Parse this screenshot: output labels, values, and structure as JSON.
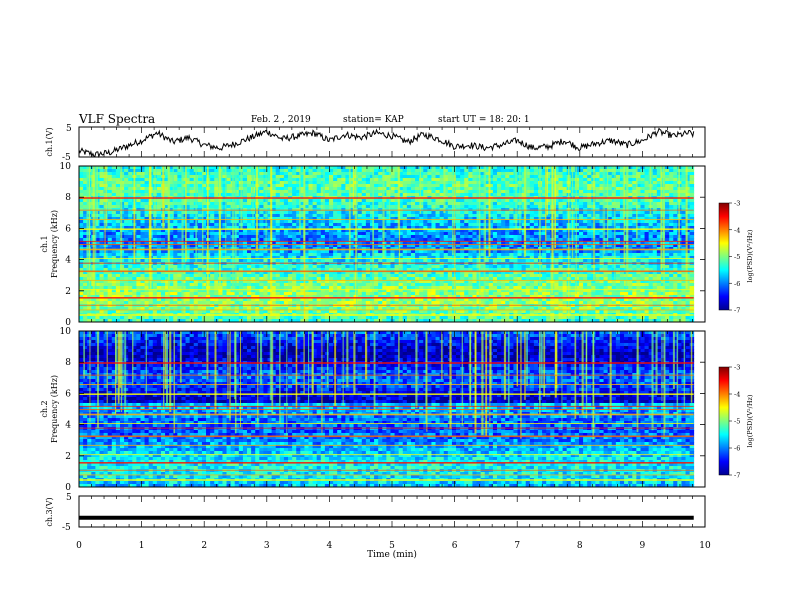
{
  "header": {
    "title": "VLF Spectra",
    "date": "Feb. 2 , 2019",
    "station": "station= KAP",
    "start": "start UT = 18: 20: 1"
  },
  "chart_data": [
    {
      "type": "line",
      "name": "ch1-voltage",
      "ylabel": "ch.1(V)",
      "ylim": [
        -5,
        5
      ],
      "yticks": [
        "5",
        "-5"
      ],
      "xlim": [
        0,
        10
      ],
      "x": [
        0,
        0.25,
        0.5,
        0.75,
        1.0,
        1.25,
        1.5,
        1.75,
        2.0,
        2.25,
        2.5,
        2.75,
        3.0,
        3.25,
        3.5,
        3.75,
        4.0,
        4.25,
        4.5,
        4.75,
        5.0,
        5.25,
        5.5,
        5.75,
        6.0,
        6.25,
        6.5,
        6.75,
        7.0,
        7.25,
        7.5,
        7.75,
        8.0,
        8.25,
        8.5,
        8.75,
        9.0,
        9.25,
        9.5,
        9.75,
        9.82
      ],
      "y": [
        -3.0,
        -4.2,
        -3.5,
        -1.5,
        0.5,
        3.0,
        0.0,
        1.5,
        -1.0,
        -2.0,
        -0.5,
        1.5,
        3.5,
        1.0,
        2.0,
        3.0,
        0.5,
        2.5,
        1.5,
        3.0,
        2.0,
        0.0,
        2.5,
        1.0,
        -1.5,
        -1.0,
        -2.0,
        -1.0,
        0.5,
        -2.0,
        -1.5,
        0.5,
        -2.0,
        -0.5,
        0.5,
        -1.0,
        0.5,
        3.5,
        2.0,
        3.0,
        2.5
      ]
    },
    {
      "type": "heatmap",
      "name": "ch1-spectrogram",
      "ylabel": "ch.1",
      "ylabel2": "Frequency (kHz)",
      "ylim": [
        0,
        10
      ],
      "yticks": [
        "0",
        "2",
        "4",
        "6",
        "8",
        "10"
      ],
      "xlim": [
        0,
        10
      ],
      "colorbar": {
        "label": "log(PSD)(V²/Hz)",
        "range": [
          -7,
          -3
        ],
        "ticks": [
          "-3",
          "-4",
          "-5",
          "-6",
          "-7"
        ]
      }
    },
    {
      "type": "heatmap",
      "name": "ch2-spectrogram",
      "ylabel": "ch.2",
      "ylabel2": "Frequency (kHz)",
      "ylim": [
        0,
        10
      ],
      "yticks": [
        "0",
        "2",
        "4",
        "6",
        "8",
        "10"
      ],
      "xlim": [
        0,
        10
      ],
      "colorbar": {
        "label": "log(PSD)(V²/Hz)",
        "range": [
          -7,
          -3
        ],
        "ticks": [
          "-3",
          "-4",
          "-5",
          "-6",
          "-7"
        ]
      }
    },
    {
      "type": "line",
      "name": "ch3-voltage",
      "ylabel": "ch.3(V)",
      "ylim": [
        -5,
        5
      ],
      "yticks": [
        "5",
        "-5"
      ],
      "xlim": [
        0,
        10
      ],
      "x": [
        0,
        9.82
      ],
      "y": [
        -2,
        -2
      ]
    }
  ],
  "xaxis": {
    "label": "Time (min)",
    "ticks": [
      "0",
      "1",
      "2",
      "3",
      "4",
      "5",
      "6",
      "7",
      "8",
      "9",
      "10"
    ]
  },
  "colors": {
    "jet": [
      "#00008f",
      "#0000ff",
      "#00ffff",
      "#7fff7f",
      "#ffff00",
      "#ff0000",
      "#800000"
    ]
  }
}
